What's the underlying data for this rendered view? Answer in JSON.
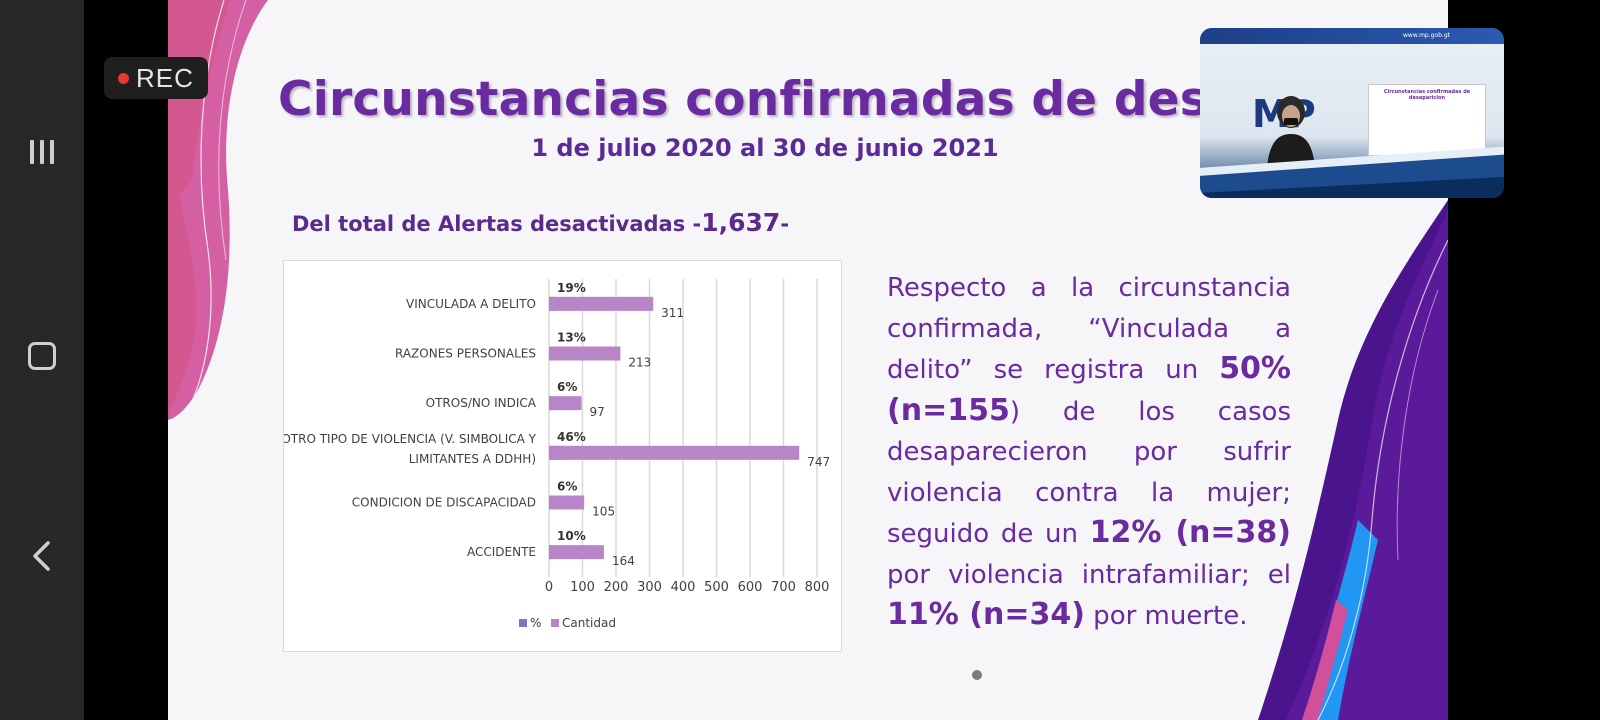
{
  "recording": {
    "label": "REC"
  },
  "slide": {
    "title": "Circunstancias confirmadas de desapa",
    "subtitle": "1 de julio 2020 al 30 de junio 2021",
    "total_label": "Del total de Alertas desactivadas -",
    "total_value": "1,637",
    "total_suffix": "-",
    "body_paragraph": {
      "p1": "Respecto a la circunstancia confirmada, “Vinculada a delito” se registra un ",
      "b1": "50% (n=155",
      "p2": ") de los casos desaparecieron por sufrir violencia contra la mujer; seguido de un ",
      "b2": "12% (n=38)",
      "p3": " por violencia intrafamiliar; el ",
      "b3": "11% (n=34)",
      "p4": " por muerte."
    }
  },
  "chart_data": {
    "type": "bar",
    "orientation": "horizontal",
    "categories": [
      "VINCULADA A DELITO",
      "RAZONES PERSONALES",
      "OTROS/NO INDICA",
      "OTRO TIPO DE VIOLENCIA (V. SIMBOLICA Y LIMITANTES A DDHH)",
      "CONDICION DE DISCAPACIDAD",
      "ACCIDENTE"
    ],
    "category_lines": [
      [
        "VINCULADA A DELITO"
      ],
      [
        "RAZONES PERSONALES"
      ],
      [
        "OTROS/NO INDICA"
      ],
      [
        "OTRO TIPO DE VIOLENCIA (V. SIMBOLICA Y",
        "LIMITANTES A DDHH)"
      ],
      [
        "CONDICION DE DISCAPACIDAD"
      ],
      [
        "ACCIDENTE"
      ]
    ],
    "series": [
      {
        "name": "%",
        "values": [
          19,
          13,
          6,
          46,
          6,
          10
        ],
        "labels": [
          "19%",
          "13%",
          "6%",
          "46%",
          "6%",
          "10%"
        ]
      },
      {
        "name": "Cantidad",
        "values": [
          311,
          213,
          97,
          747,
          105,
          164
        ],
        "labels": [
          "311",
          "213",
          "97",
          "747",
          "105",
          "164"
        ]
      }
    ],
    "x_ticks": [
      0,
      100,
      200,
      300,
      400,
      500,
      600,
      700,
      800
    ],
    "xlim": [
      0,
      800
    ],
    "grid": true,
    "legend": "bottom",
    "colors": {
      "percent": "#8c6fbf",
      "cantidad": "#b985c9",
      "grid": "#d9d9d9",
      "text": "#404040"
    }
  },
  "pip": {
    "site": "www.mp.gob.gt",
    "logo": "MP",
    "screen_title": "Circunstancias confirmadas de desaparición"
  },
  "colors": {
    "accent": "#6a2aa0",
    "magenta": "#d0519a",
    "orange": "#f7a11a",
    "deep_purple": "#4a148c",
    "blue": "#1e88e5"
  }
}
